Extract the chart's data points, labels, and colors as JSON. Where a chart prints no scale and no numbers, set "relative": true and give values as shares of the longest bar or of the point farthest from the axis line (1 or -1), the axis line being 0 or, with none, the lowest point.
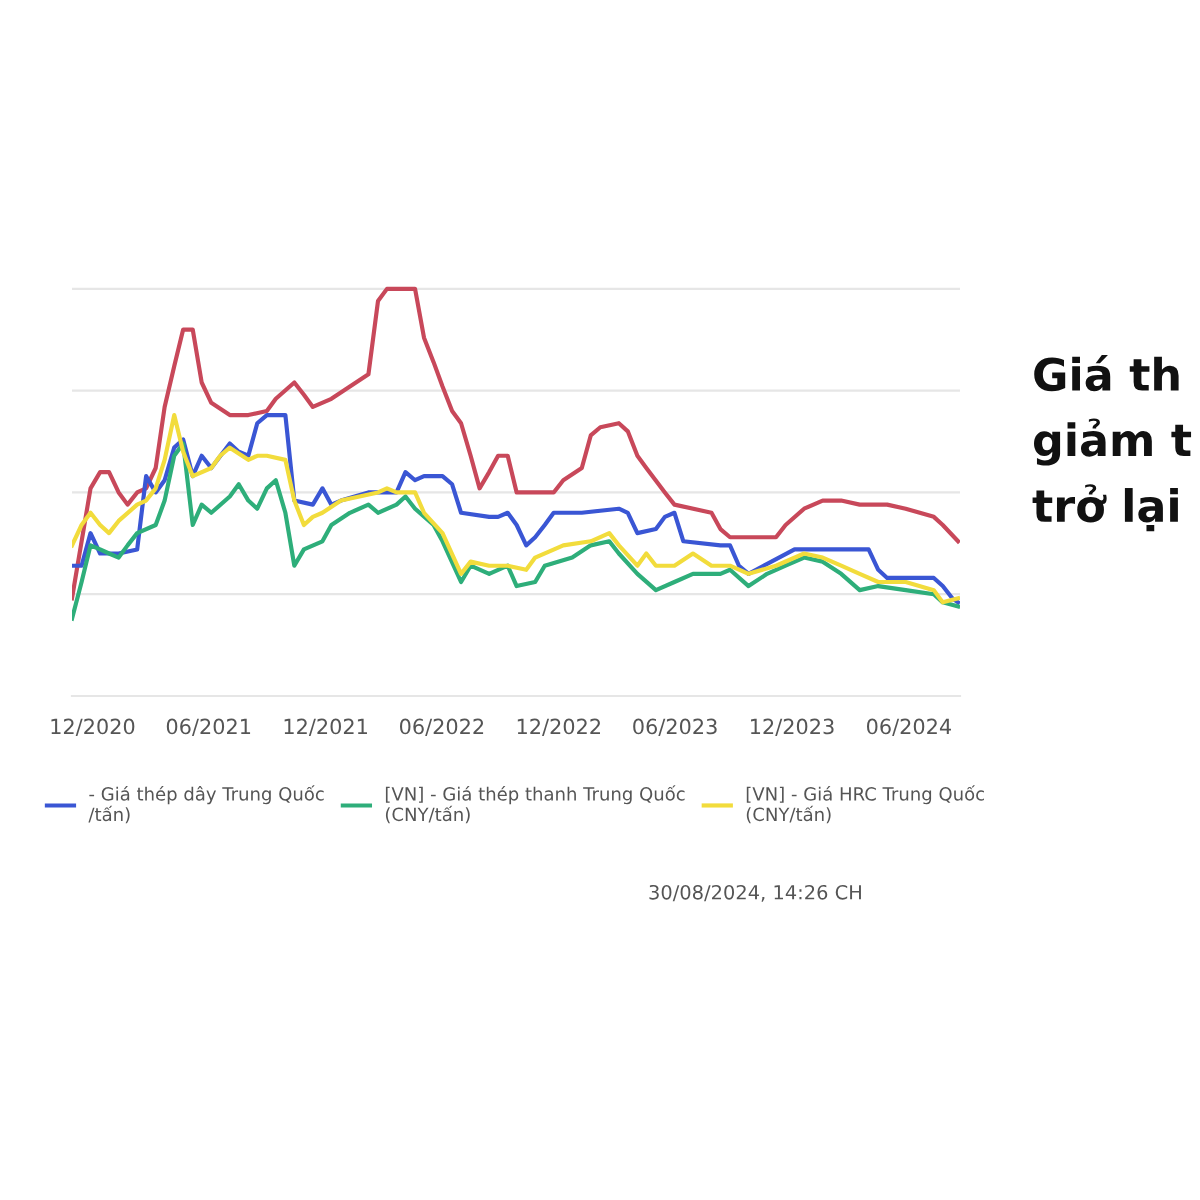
{
  "chart_data": {
    "type": "line",
    "relative": true,
    "grid": "y",
    "legend": "bottom",
    "xlim": [
      "2020-10-30",
      "2024-08-20"
    ],
    "xticks": [
      {
        "value": "2020-12-01",
        "label": "12/2020"
      },
      {
        "value": "2021-06-01",
        "label": "06/2021"
      },
      {
        "value": "2021-12-01",
        "label": "12/2021"
      },
      {
        "value": "2022-06-01",
        "label": "06/2022"
      },
      {
        "value": "2022-12-01",
        "label": "12/2022"
      },
      {
        "value": "2023-06-01",
        "label": "06/2023"
      },
      {
        "value": "2023-12-01",
        "label": "12/2023"
      },
      {
        "value": "2024-06-01",
        "label": "06/2024"
      }
    ],
    "annotations": [
      "Giá th\ngiảm t\ntrở lại",
      "30/08/2024, 14:26 CH"
    ],
    "series": [
      {
        "color": "#c8485a",
        "x": [
          "2020-10-30",
          "2020-11-28",
          "2020-12-13",
          "2020-12-27",
          "2021-01-11",
          "2021-01-25",
          "2021-02-09",
          "2021-02-23",
          "2021-03-10",
          "2021-03-24",
          "2021-04-08",
          "2021-04-22",
          "2021-05-07",
          "2021-05-21",
          "2021-06-05",
          "2021-07-04",
          "2021-08-02",
          "2021-08-31",
          "2021-09-14",
          "2021-10-13",
          "2021-10-28",
          "2021-11-11",
          "2021-12-10",
          "2022-01-08",
          "2022-02-06",
          "2022-02-21",
          "2022-03-07",
          "2022-04-20",
          "2022-05-04",
          "2022-05-19",
          "2022-06-02",
          "2022-06-17",
          "2022-07-01",
          "2022-07-16",
          "2022-07-30",
          "2022-08-14",
          "2022-08-28",
          "2022-09-12",
          "2022-09-26",
          "2022-11-23",
          "2022-12-08",
          "2023-01-06",
          "2023-01-20",
          "2023-02-04",
          "2023-03-05",
          "2023-03-19",
          "2023-04-03",
          "2023-04-17",
          "2023-05-16",
          "2023-05-31",
          "2023-07-28",
          "2023-08-11",
          "2023-08-26",
          "2023-11-06",
          "2023-11-21",
          "2023-12-20",
          "2024-01-18",
          "2024-02-16",
          "2024-03-16",
          "2024-04-28",
          "2024-05-27",
          "2024-07-10",
          "2024-07-24",
          "2024-08-17"
        ],
        "values": [
          0.24,
          0.51,
          0.55,
          0.55,
          0.5,
          0.47,
          0.5,
          0.51,
          0.56,
          0.71,
          0.81,
          0.9,
          0.9,
          0.77,
          0.72,
          0.69,
          0.69,
          0.7,
          0.73,
          0.77,
          0.74,
          0.71,
          0.73,
          0.76,
          0.79,
          0.97,
          1.0,
          1.0,
          0.88,
          0.82,
          0.76,
          0.7,
          0.67,
          0.59,
          0.51,
          0.55,
          0.59,
          0.59,
          0.5,
          0.5,
          0.53,
          0.56,
          0.64,
          0.66,
          0.67,
          0.65,
          0.59,
          0.56,
          0.5,
          0.47,
          0.45,
          0.41,
          0.39,
          0.39,
          0.42,
          0.46,
          0.48,
          0.48,
          0.47,
          0.47,
          0.46,
          0.44,
          0.42,
          0.38
        ]
      },
      {
        "name": "- Giá thép dây Trung Quốc\n/tấn)",
        "color": "#3a56d4",
        "x": [
          "2020-10-30",
          "2020-11-14",
          "2020-11-28",
          "2020-12-13",
          "2021-01-11",
          "2021-02-09",
          "2021-02-23",
          "2021-03-10",
          "2021-03-24",
          "2021-04-08",
          "2021-04-22",
          "2021-05-07",
          "2021-05-21",
          "2021-06-05",
          "2021-07-04",
          "2021-07-18",
          "2021-08-02",
          "2021-08-16",
          "2021-08-31",
          "2021-09-29",
          "2021-10-13",
          "2021-11-11",
          "2021-11-26",
          "2021-12-10",
          "2021-12-25",
          "2022-02-06",
          "2022-03-22",
          "2022-04-05",
          "2022-04-20",
          "2022-05-04",
          "2022-06-02",
          "2022-06-17",
          "2022-07-01",
          "2022-08-14",
          "2022-08-28",
          "2022-09-12",
          "2022-09-26",
          "2022-10-11",
          "2022-10-25",
          "2022-11-09",
          "2022-11-23",
          "2023-01-06",
          "2023-03-05",
          "2023-03-19",
          "2023-04-03",
          "2023-05-02",
          "2023-05-16",
          "2023-05-31",
          "2023-06-14",
          "2023-08-11",
          "2023-08-26",
          "2023-09-09",
          "2023-09-24",
          "2023-12-05",
          "2024-03-30",
          "2024-04-14",
          "2024-04-28",
          "2024-07-10",
          "2024-07-24",
          "2024-08-08",
          "2024-08-17"
        ],
        "values": [
          0.32,
          0.32,
          0.4,
          0.35,
          0.35,
          0.36,
          0.54,
          0.5,
          0.53,
          0.61,
          0.63,
          0.54,
          0.59,
          0.56,
          0.62,
          0.6,
          0.59,
          0.67,
          0.69,
          0.69,
          0.48,
          0.47,
          0.51,
          0.47,
          0.48,
          0.5,
          0.5,
          0.55,
          0.53,
          0.54,
          0.54,
          0.52,
          0.45,
          0.44,
          0.44,
          0.45,
          0.42,
          0.37,
          0.39,
          0.42,
          0.45,
          0.45,
          0.46,
          0.45,
          0.4,
          0.41,
          0.44,
          0.45,
          0.38,
          0.37,
          0.37,
          0.32,
          0.3,
          0.36,
          0.36,
          0.31,
          0.29,
          0.29,
          0.27,
          0.24,
          0.23
        ]
      },
      {
        "name": "[VN] - Giá thép thanh Trung Quốc\n(CNY/tấn)",
        "color": "#2eae7a",
        "x": [
          "2020-10-30",
          "2020-11-14",
          "2020-11-28",
          "2020-12-13",
          "2020-12-27",
          "2021-01-11",
          "2021-01-25",
          "2021-02-09",
          "2021-03-10",
          "2021-03-24",
          "2021-04-08",
          "2021-04-22",
          "2021-05-07",
          "2021-05-21",
          "2021-06-05",
          "2021-07-04",
          "2021-07-18",
          "2021-08-02",
          "2021-08-16",
          "2021-08-31",
          "2021-09-14",
          "2021-09-29",
          "2021-10-13",
          "2021-10-28",
          "2021-11-26",
          "2021-12-10",
          "2022-01-08",
          "2022-02-06",
          "2022-02-21",
          "2022-03-22",
          "2022-04-05",
          "2022-04-20",
          "2022-05-19",
          "2022-06-02",
          "2022-07-01",
          "2022-07-16",
          "2022-08-14",
          "2022-09-12",
          "2022-09-26",
          "2022-10-25",
          "2022-11-09",
          "2022-12-22",
          "2023-01-20",
          "2023-02-18",
          "2023-03-05",
          "2023-04-03",
          "2023-05-02",
          "2023-05-31",
          "2023-06-29",
          "2023-08-11",
          "2023-08-26",
          "2023-09-24",
          "2023-10-23",
          "2023-11-21",
          "2023-12-20",
          "2024-01-18",
          "2024-02-16",
          "2024-03-16",
          "2024-04-14",
          "2024-05-27",
          "2024-07-10",
          "2024-07-24",
          "2024-08-17"
        ],
        "values": [
          0.19,
          0.28,
          0.37,
          0.36,
          0.35,
          0.34,
          0.37,
          0.4,
          0.42,
          0.48,
          0.59,
          0.62,
          0.42,
          0.47,
          0.45,
          0.49,
          0.52,
          0.48,
          0.46,
          0.51,
          0.53,
          0.45,
          0.32,
          0.36,
          0.38,
          0.42,
          0.45,
          0.47,
          0.45,
          0.47,
          0.49,
          0.46,
          0.42,
          0.38,
          0.28,
          0.32,
          0.3,
          0.32,
          0.27,
          0.28,
          0.32,
          0.34,
          0.37,
          0.38,
          0.35,
          0.3,
          0.26,
          0.28,
          0.3,
          0.3,
          0.31,
          0.27,
          0.3,
          0.32,
          0.34,
          0.33,
          0.3,
          0.26,
          0.27,
          0.26,
          0.25,
          0.23,
          0.22
        ]
      },
      {
        "name": "[VN] - Giá HRC Trung Quốc\n(CNY/tấn)",
        "color": "#f2dc3c",
        "x": [
          "2020-10-30",
          "2020-11-14",
          "2020-11-28",
          "2020-12-13",
          "2020-12-27",
          "2021-01-11",
          "2021-02-09",
          "2021-02-23",
          "2021-03-10",
          "2021-03-24",
          "2021-04-08",
          "2021-04-22",
          "2021-05-07",
          "2021-06-05",
          "2021-06-19",
          "2021-07-04",
          "2021-08-02",
          "2021-08-16",
          "2021-08-31",
          "2021-09-29",
          "2021-10-13",
          "2021-10-28",
          "2021-11-11",
          "2021-11-26",
          "2021-12-25",
          "2022-01-23",
          "2022-02-21",
          "2022-03-07",
          "2022-03-22",
          "2022-04-20",
          "2022-05-04",
          "2022-06-02",
          "2022-07-01",
          "2022-07-16",
          "2022-08-14",
          "2022-09-12",
          "2022-10-11",
          "2022-10-25",
          "2022-12-08",
          "2023-01-20",
          "2023-02-18",
          "2023-03-05",
          "2023-04-03",
          "2023-04-17",
          "2023-05-02",
          "2023-05-31",
          "2023-06-29",
          "2023-07-28",
          "2023-08-26",
          "2023-09-24",
          "2023-11-06",
          "2023-12-20",
          "2024-01-18",
          "2024-02-16",
          "2024-03-16",
          "2024-04-14",
          "2024-05-27",
          "2024-07-10",
          "2024-07-24",
          "2024-08-17"
        ],
        "values": [
          0.37,
          0.42,
          0.45,
          0.42,
          0.4,
          0.43,
          0.47,
          0.48,
          0.51,
          0.58,
          0.69,
          0.6,
          0.54,
          0.56,
          0.59,
          0.61,
          0.58,
          0.59,
          0.59,
          0.58,
          0.48,
          0.42,
          0.44,
          0.45,
          0.48,
          0.49,
          0.5,
          0.51,
          0.5,
          0.5,
          0.45,
          0.4,
          0.3,
          0.33,
          0.32,
          0.32,
          0.31,
          0.34,
          0.37,
          0.38,
          0.4,
          0.37,
          0.32,
          0.35,
          0.32,
          0.32,
          0.35,
          0.32,
          0.32,
          0.3,
          0.32,
          0.35,
          0.34,
          0.32,
          0.3,
          0.28,
          0.28,
          0.26,
          0.23,
          0.24
        ]
      }
    ]
  }
}
